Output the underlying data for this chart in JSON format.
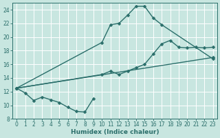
{
  "bg_color": "#c8e6e0",
  "grid_color": "#b8d8d2",
  "line_color": "#2a6e6a",
  "xlabel": "Humidex (Indice chaleur)",
  "xlim": [
    -0.5,
    23.5
  ],
  "ylim": [
    8,
    25
  ],
  "yticks": [
    8,
    10,
    12,
    14,
    16,
    18,
    20,
    22,
    24
  ],
  "xticks": [
    0,
    1,
    2,
    3,
    4,
    5,
    6,
    7,
    8,
    9,
    10,
    11,
    12,
    13,
    14,
    15,
    16,
    17,
    18,
    19,
    20,
    21,
    22,
    23
  ],
  "line1_x": [
    0,
    1,
    2,
    3,
    4,
    5,
    6,
    7,
    8,
    9
  ],
  "line1_y": [
    12.5,
    11.8,
    10.7,
    11.2,
    10.8,
    10.4,
    9.7,
    9.1,
    9.0,
    11.0
  ],
  "line2_x": [
    0,
    10,
    11,
    12,
    13,
    14,
    15,
    16,
    17,
    23
  ],
  "line2_y": [
    12.5,
    19.2,
    21.8,
    22.0,
    23.2,
    24.5,
    24.5,
    22.8,
    21.8,
    16.8
  ],
  "line3_x": [
    0,
    10,
    11,
    12,
    13,
    14,
    15,
    16,
    17,
    18,
    19,
    20,
    21,
    22,
    23
  ],
  "line3_y": [
    12.5,
    14.5,
    15.0,
    14.5,
    15.0,
    15.5,
    16.0,
    17.5,
    19.0,
    19.5,
    18.5,
    18.4,
    18.5,
    18.4,
    18.5
  ],
  "line4_x": [
    0,
    23
  ],
  "line4_y": [
    12.5,
    17.0
  ],
  "marker": "D",
  "markersize": 2.5,
  "linewidth": 1.0
}
